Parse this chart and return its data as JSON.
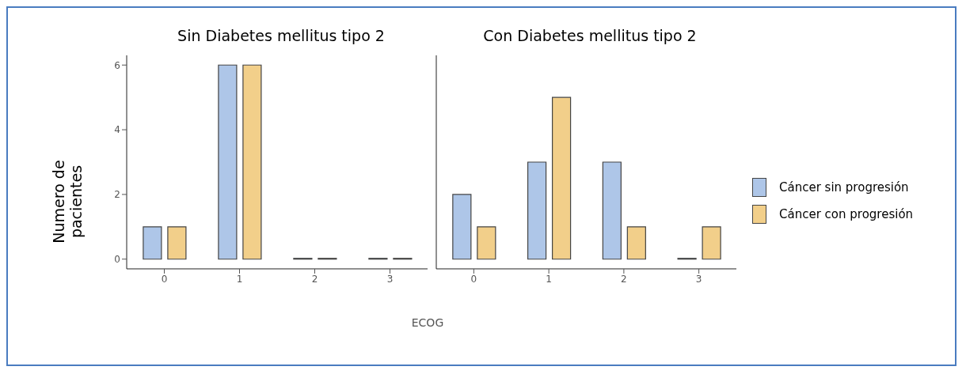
{
  "chart_data": [
    {
      "type": "bar",
      "title": "Sin Diabetes mellitus tipo 2",
      "ylabel": "Numero de pacientes",
      "xlabel": "ECOG",
      "categories": [
        "0",
        "1",
        "2",
        "3"
      ],
      "series": [
        {
          "color": "#aec6e8",
          "values": [
            1,
            6,
            0,
            0
          ]
        },
        {
          "color": "#f2cf8a",
          "values": [
            1,
            6,
            0,
            0
          ]
        }
      ],
      "ylim": [
        -0.3,
        6.3
      ],
      "yticks": [
        0,
        2,
        4,
        6
      ],
      "grid": false,
      "legend": false
    },
    {
      "type": "bar",
      "title": "Con Diabetes mellitus tipo 2",
      "categories": [
        "0",
        "1",
        "2",
        "3"
      ],
      "series": [
        {
          "name": "Cáncer sin progresión",
          "color": "#aec6e8",
          "values": [
            2,
            3,
            3,
            0
          ]
        },
        {
          "name": "Cáncer con  progresión",
          "color": "#f2cf8a",
          "values": [
            1,
            5,
            1,
            1
          ]
        }
      ],
      "ylim": [
        -0.3,
        6.3
      ],
      "yticks": [
        0,
        2,
        4,
        6
      ],
      "tick_labels": "x",
      "grid": false,
      "legend": "right"
    }
  ]
}
